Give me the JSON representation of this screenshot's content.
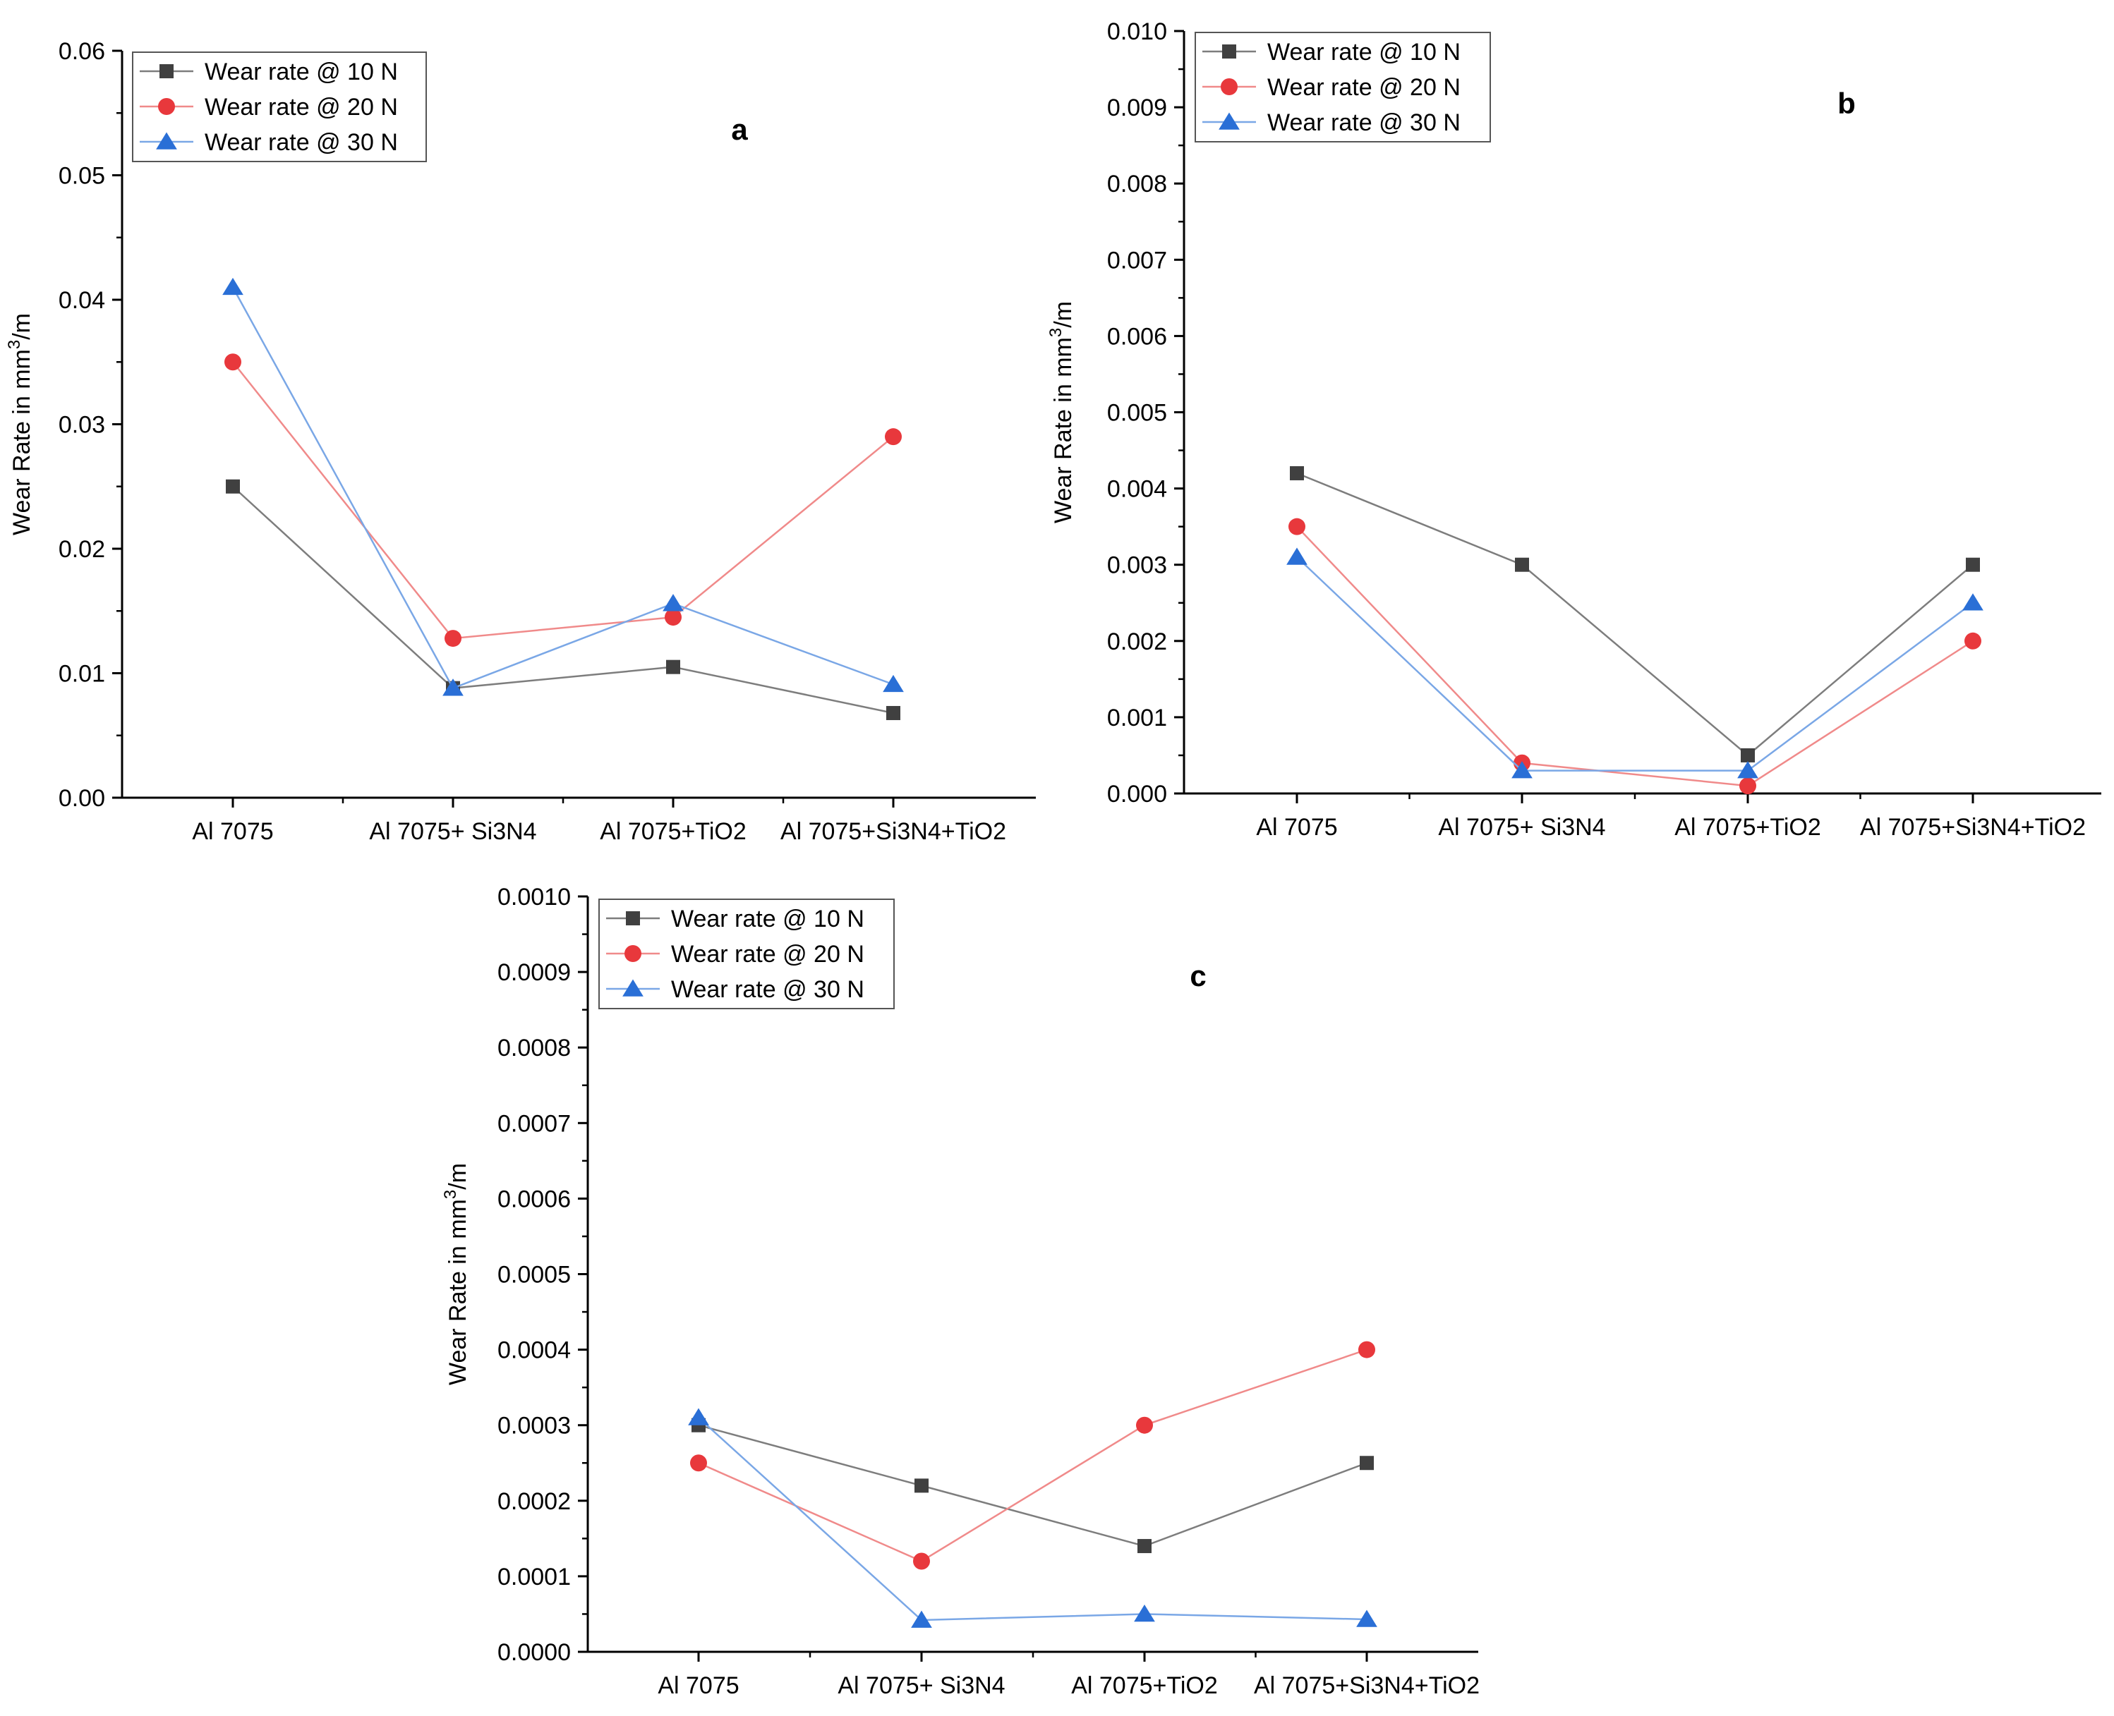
{
  "colors": {
    "series": [
      "#404040",
      "#e8383c",
      "#2a6fd6"
    ],
    "lines": [
      "#7d7d7d",
      "#f08a8a",
      "#7aa7e6"
    ],
    "axis": "#000000"
  },
  "panels": [
    {
      "panel_label": "a",
      "ylabel": "Wear Rate in mm",
      "ylabel_sup": "3",
      "ylabel_tail": "/m",
      "y_ticks": [
        "0.00",
        "0.01",
        "0.02",
        "0.03",
        "0.04",
        "0.05",
        "0.06"
      ],
      "legend_position": "top-left",
      "legend": [
        "Wear rate @ 10 N",
        "Wear rate @ 20 N",
        "Wear rate @ 30 N"
      ],
      "chart_data": {
        "type": "line",
        "categories": [
          "Al 7075",
          "Al 7075+ Si3N4",
          "Al 7075+TiO2",
          "Al 7075+Si3N4+TiO2"
        ],
        "ylim": [
          0,
          0.06
        ],
        "series": [
          {
            "name": "Wear rate @ 10 N",
            "marker": "square",
            "values": [
              0.025,
              0.0088,
              0.0105,
              0.0068
            ]
          },
          {
            "name": "Wear rate @ 20 N",
            "marker": "circle",
            "values": [
              0.035,
              0.0128,
              0.0145,
              0.029
            ]
          },
          {
            "name": "Wear rate @ 30 N",
            "marker": "triangle",
            "values": [
              0.041,
              0.0088,
              0.0156,
              0.0091
            ]
          }
        ]
      }
    },
    {
      "panel_label": "b",
      "ylabel": "Wear Rate in mm",
      "ylabel_sup": "3",
      "ylabel_tail": "/m",
      "y_ticks": [
        "0.000",
        "0.001",
        "0.002",
        "0.003",
        "0.004",
        "0.005",
        "0.006",
        "0.007",
        "0.008",
        "0.009",
        "0.010"
      ],
      "legend_position": "top-left",
      "legend": [
        "Wear rate @ 10 N",
        "Wear rate @ 20 N",
        "Wear rate @ 30 N"
      ],
      "chart_data": {
        "type": "line",
        "categories": [
          "Al 7075",
          "Al 7075+ Si3N4",
          "Al 7075+TiO2",
          "Al 7075+Si3N4+TiO2"
        ],
        "ylim": [
          0,
          0.01
        ],
        "series": [
          {
            "name": "Wear rate @ 10 N",
            "marker": "square",
            "values": [
              0.0042,
              0.003,
              0.0005,
              0.003
            ]
          },
          {
            "name": "Wear rate @ 20 N",
            "marker": "circle",
            "values": [
              0.0035,
              0.0004,
              0.0001,
              0.002
            ]
          },
          {
            "name": "Wear rate @ 30 N",
            "marker": "triangle",
            "values": [
              0.0031,
              0.0003,
              0.0003,
              0.0025
            ]
          }
        ]
      }
    },
    {
      "panel_label": "c",
      "ylabel": "Wear Rate in mm",
      "ylabel_sup": "3",
      "ylabel_tail": "/m",
      "y_ticks": [
        "0.0000",
        "0.0001",
        "0.0002",
        "0.0003",
        "0.0004",
        "0.0005",
        "0.0006",
        "0.0007",
        "0.0008",
        "0.0009",
        "0.0010"
      ],
      "legend_position": "top-left",
      "legend": [
        "Wear rate @ 10 N",
        "Wear rate @ 20 N",
        "Wear rate @ 30 N"
      ],
      "chart_data": {
        "type": "line",
        "categories": [
          "Al 7075",
          "Al 7075+ Si3N4",
          "Al 7075+TiO2",
          "Al 7075+Si3N4+TiO2"
        ],
        "ylim": [
          0,
          0.001
        ],
        "series": [
          {
            "name": "Wear rate @ 10 N",
            "marker": "square",
            "values": [
              0.0003,
              0.00022,
              0.00014,
              0.00025
            ]
          },
          {
            "name": "Wear rate @ 20 N",
            "marker": "circle",
            "values": [
              0.00025,
              0.00012,
              0.0003,
              0.0004
            ]
          },
          {
            "name": "Wear rate @ 30 N",
            "marker": "triangle",
            "values": [
              0.00031,
              4.2e-05,
              5e-05,
              4.3e-05
            ]
          }
        ]
      }
    }
  ]
}
